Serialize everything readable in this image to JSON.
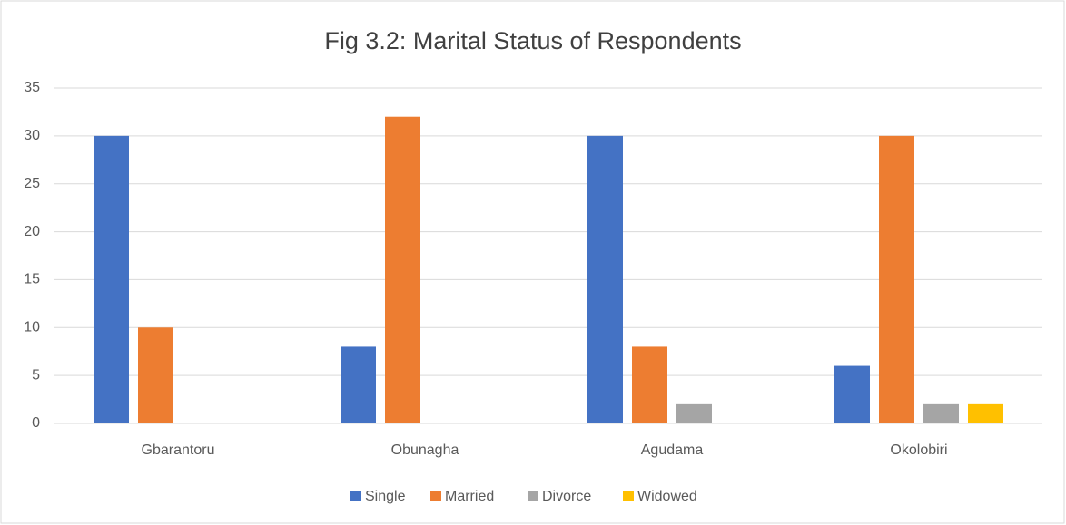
{
  "chart_data": {
    "type": "bar",
    "title": "Fig 3.2: Marital Status of Respondents",
    "categories": [
      "Gbarantoru",
      "Obunagha",
      "Agudama",
      "Okolobiri"
    ],
    "series": [
      {
        "name": "Single",
        "color": "#4472c4",
        "values": [
          30,
          8,
          30,
          6
        ]
      },
      {
        "name": "Married",
        "color": "#ed7d31",
        "values": [
          10,
          32,
          8,
          30
        ]
      },
      {
        "name": "Divorce",
        "color": "#a5a5a5",
        "values": [
          0,
          0,
          2,
          2
        ]
      },
      {
        "name": "Widowed",
        "color": "#ffc000",
        "values": [
          0,
          0,
          0,
          2
        ]
      }
    ],
    "ylim": [
      0,
      35
    ],
    "yticks": [
      0,
      5,
      10,
      15,
      20,
      25,
      30,
      35
    ],
    "grid": true,
    "legend": "bottom"
  }
}
